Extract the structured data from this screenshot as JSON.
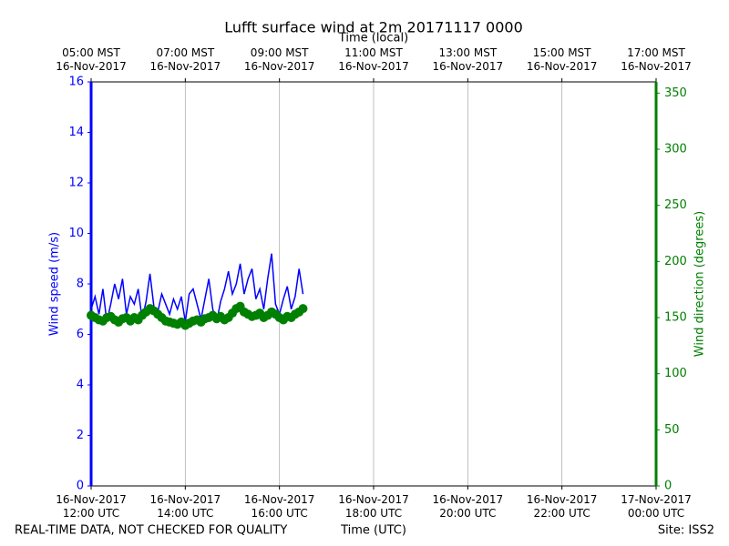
{
  "chart_data": {
    "type": "line",
    "title": "Lufft surface wind at 2m 20171117 0000",
    "xlabel": "Time (UTC)",
    "x2label": "Time (local)",
    "ylabel": "Wind speed (m/s)",
    "y2label": "Wind direction (degrees)",
    "footer_left": "REAL-TIME DATA, NOT CHECKED FOR QUALITY",
    "footer_right": "Site: ISS2",
    "x": [
      "2017-11-16 12:00",
      "2017-11-16 12:05",
      "2017-11-16 12:10",
      "2017-11-16 12:15",
      "2017-11-16 12:20",
      "2017-11-16 12:25",
      "2017-11-16 12:30",
      "2017-11-16 12:35",
      "2017-11-16 12:40",
      "2017-11-16 12:45",
      "2017-11-16 12:50",
      "2017-11-16 12:55",
      "2017-11-16 13:00",
      "2017-11-16 13:05",
      "2017-11-16 13:10",
      "2017-11-16 13:15",
      "2017-11-16 13:20",
      "2017-11-16 13:25",
      "2017-11-16 13:30",
      "2017-11-16 13:35",
      "2017-11-16 13:40",
      "2017-11-16 13:45",
      "2017-11-16 13:50",
      "2017-11-16 13:55",
      "2017-11-16 14:00",
      "2017-11-16 14:05",
      "2017-11-16 14:10",
      "2017-11-16 14:15",
      "2017-11-16 14:20",
      "2017-11-16 14:25",
      "2017-11-16 14:30",
      "2017-11-16 14:35",
      "2017-11-16 14:40",
      "2017-11-16 14:45",
      "2017-11-16 14:50",
      "2017-11-16 14:55",
      "2017-11-16 15:00",
      "2017-11-16 15:05",
      "2017-11-16 15:10",
      "2017-11-16 15:15",
      "2017-11-16 15:20",
      "2017-11-16 15:25",
      "2017-11-16 15:30",
      "2017-11-16 15:35",
      "2017-11-16 15:40",
      "2017-11-16 15:45",
      "2017-11-16 15:50",
      "2017-11-16 15:55",
      "2017-11-16 16:00",
      "2017-11-16 16:05",
      "2017-11-16 16:10",
      "2017-11-16 16:15",
      "2017-11-16 16:20",
      "2017-11-16 16:25",
      "2017-11-16 16:30"
    ],
    "series": [
      {
        "name": "Wind speed",
        "color": "#0000ff",
        "axis": "y",
        "values": [
          7.0,
          7.5,
          6.8,
          7.8,
          6.5,
          7.2,
          8.0,
          7.4,
          8.2,
          6.8,
          7.5,
          7.2,
          7.8,
          6.6,
          7.3,
          8.4,
          7.1,
          6.9,
          7.6,
          7.2,
          6.8,
          7.4,
          7.0,
          7.5,
          6.5,
          7.6,
          7.8,
          7.2,
          6.6,
          7.4,
          8.2,
          7.0,
          6.5,
          7.3,
          7.8,
          8.5,
          7.6,
          8.0,
          8.8,
          7.6,
          8.2,
          8.6,
          7.4,
          7.8,
          7.0,
          8.2,
          9.2,
          7.2,
          6.8,
          7.4,
          7.9,
          7.0,
          7.5,
          8.6,
          7.6
        ]
      },
      {
        "name": "Wind direction",
        "color": "#008000",
        "axis": "y2",
        "values": [
          152,
          150,
          148,
          147,
          150,
          151,
          148,
          146,
          149,
          150,
          147,
          150,
          148,
          152,
          155,
          158,
          156,
          153,
          150,
          147,
          146,
          145,
          144,
          146,
          143,
          145,
          147,
          148,
          146,
          149,
          150,
          152,
          149,
          151,
          148,
          150,
          154,
          158,
          160,
          155,
          153,
          151,
          152,
          154,
          150,
          152,
          155,
          153,
          150,
          148,
          151,
          150,
          153,
          155,
          158
        ]
      }
    ],
    "xlim": [
      "2017-11-16 12:00",
      "2017-11-17 00:00"
    ],
    "xticks": [
      {
        "value": "2017-11-16 12:00",
        "label": "16-Nov-2017\n12:00 UTC"
      },
      {
        "value": "2017-11-16 14:00",
        "label": "16-Nov-2017\n14:00 UTC"
      },
      {
        "value": "2017-11-16 16:00",
        "label": "16-Nov-2017\n16:00 UTC"
      },
      {
        "value": "2017-11-16 18:00",
        "label": "16-Nov-2017\n18:00 UTC"
      },
      {
        "value": "2017-11-16 20:00",
        "label": "16-Nov-2017\n20:00 UTC"
      },
      {
        "value": "2017-11-16 22:00",
        "label": "16-Nov-2017\n22:00 UTC"
      },
      {
        "value": "2017-11-17 00:00",
        "label": "17-Nov-2017\n00:00 UTC"
      }
    ],
    "x2ticks": [
      {
        "value": "2017-11-16 12:00",
        "label": "05:00 MST\n16-Nov-2017"
      },
      {
        "value": "2017-11-16 14:00",
        "label": "07:00 MST\n16-Nov-2017"
      },
      {
        "value": "2017-11-16 16:00",
        "label": "09:00 MST\n16-Nov-2017"
      },
      {
        "value": "2017-11-16 18:00",
        "label": "11:00 MST\n16-Nov-2017"
      },
      {
        "value": "2017-11-16 20:00",
        "label": "13:00 MST\n16-Nov-2017"
      },
      {
        "value": "2017-11-16 22:00",
        "label": "15:00 MST\n16-Nov-2017"
      },
      {
        "value": "2017-11-17 00:00",
        "label": "17:00 MST\n16-Nov-2017"
      }
    ],
    "ylim": [
      0,
      16
    ],
    "yticks": [
      0,
      2,
      4,
      6,
      8,
      10,
      12,
      14,
      16
    ],
    "y2lim": [
      0,
      360
    ],
    "y2ticks": [
      0,
      50,
      100,
      150,
      200,
      250,
      300,
      350
    ],
    "grid": "x"
  }
}
